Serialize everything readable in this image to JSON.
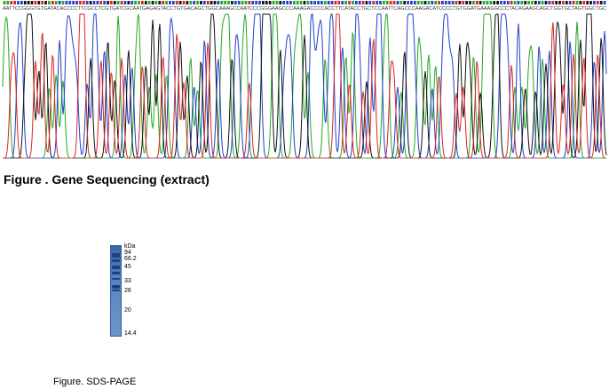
{
  "sequencing": {
    "caption": "Figure . Gene Sequencing (extract)",
    "base_calls": "AATTCCGGGTGTGATACACCCCTTCGCCTCGTGATCGCAATGAGAGTACCTGTGACAGCTGGCAAAGCCAATCCCGGGAAGCCCAAAGACCCCACCTTCATACCTGCTCCAATTCAGCCCAAGACATCCCCTGTGGATGAAAGGCCCTACAGAAGCAGCTGGTGCTAGTGGCTGC",
    "peak_colors": {
      "A": "#22aa22",
      "C": "#1f3fcc",
      "G": "#111111",
      "T": "#dd2222"
    }
  },
  "sds_page": {
    "caption": "Figure. SDS-PAGE",
    "unit_label": "kDa",
    "markers": [
      {
        "label": "94"
      },
      {
        "label": "66.2"
      },
      {
        "label": "45"
      },
      {
        "label": "33"
      },
      {
        "label": "26"
      },
      {
        "label": "20"
      },
      {
        "label": "14.4"
      }
    ]
  }
}
